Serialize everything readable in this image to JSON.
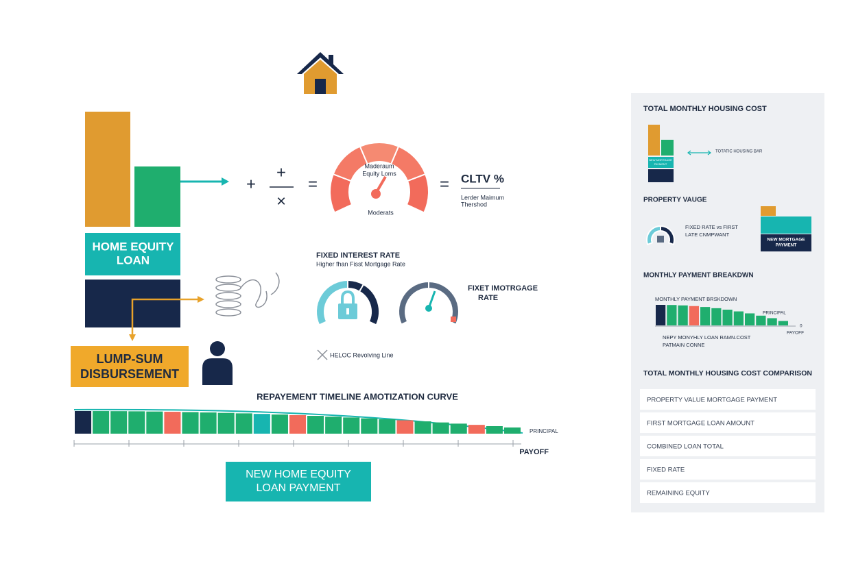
{
  "left": {
    "home_equity_loan": [
      "HOME EQUITY",
      "LOAN"
    ],
    "lump_sum": [
      "LUMP-SUM",
      "DISBURSEMENT"
    ]
  },
  "formula": {
    "operators": [
      "+",
      "+",
      "×",
      "=",
      "="
    ],
    "gauge_label": [
      "Maderaum",
      "Equity Loms"
    ],
    "gauge_caption": "Moderats",
    "result": "CLTV %",
    "threshold": [
      "Lerder Maimum",
      "Thershod"
    ]
  },
  "rates": {
    "title": "FIXED INTEREST RATE",
    "subtitle": "Higher fhan Fisst Mortgage Rate",
    "mortgage_rate": [
      "FIXET IMOTRGAGE",
      "RATE"
    ],
    "heloc": "HELOC Revolving Line"
  },
  "timeline": {
    "title": "REPAYEMENT TIMELINE AMOTIZATION CURVE",
    "principal": "PRINCIPAL",
    "payoff": "PAYOFF"
  },
  "button": [
    "NEW HOME EQUITY",
    "LOAN PAYMENT"
  ],
  "panel": {
    "title": "TOTAL MONTHLY HOUSING COST",
    "bar_label": "TOTATIC HOUSING BAR",
    "bar_inner": [
      "NEW MORTGAGE",
      "PAYMENT"
    ],
    "property_title": "PROPERTY VAUGE",
    "rate_compare": [
      "FIXED RATE vs FIRST",
      "LATE CNMPWANT"
    ],
    "new_payment": [
      "NEW MORTGAGE",
      "PAYMENT"
    ],
    "breakdown_title": "MONTHLY PAYMENT BREAKDWN",
    "breakdown_label": "MONTHLY PAYMENT BRSKDOWN",
    "principal": "PRINCIPAL",
    "zero": "0",
    "payoff": "PAYOFF",
    "breakdown_note": [
      "NEPY MONYHLY LOAN RAMN.COST",
      "PATMAIN CONNE"
    ],
    "comparison_title": "TOTAL MONTHLY HOUSING COST COMPARISON",
    "comparison_items": [
      "PROPERTY VALUE MORTGAGE PAYMENT",
      "FIRST MORTGAGE LOAN AMOUNT",
      "COMBINED LOAN TOTAL",
      "FIXED RATE",
      "REMAINING EQUITY"
    ]
  }
}
